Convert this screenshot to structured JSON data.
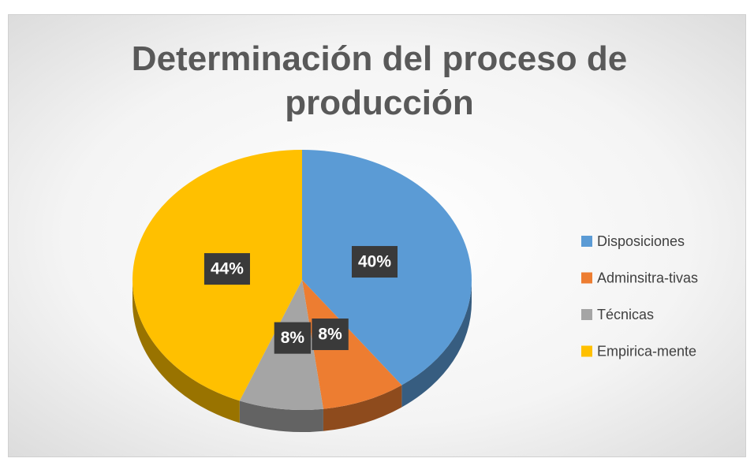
{
  "chart_data": {
    "type": "pie",
    "title": "Determinación del proceso de producción",
    "categories": [
      "Disposiciones",
      "Adminsitra-tivas",
      "Técnicas",
      "Empirica-mente"
    ],
    "values": [
      40,
      8,
      8,
      44
    ],
    "value_labels": [
      "40%",
      "8%",
      "8%",
      "44%"
    ],
    "colors": [
      "#5b9bd5",
      "#ed7d31",
      "#a5a5a5",
      "#ffc000"
    ],
    "legend": "right"
  }
}
